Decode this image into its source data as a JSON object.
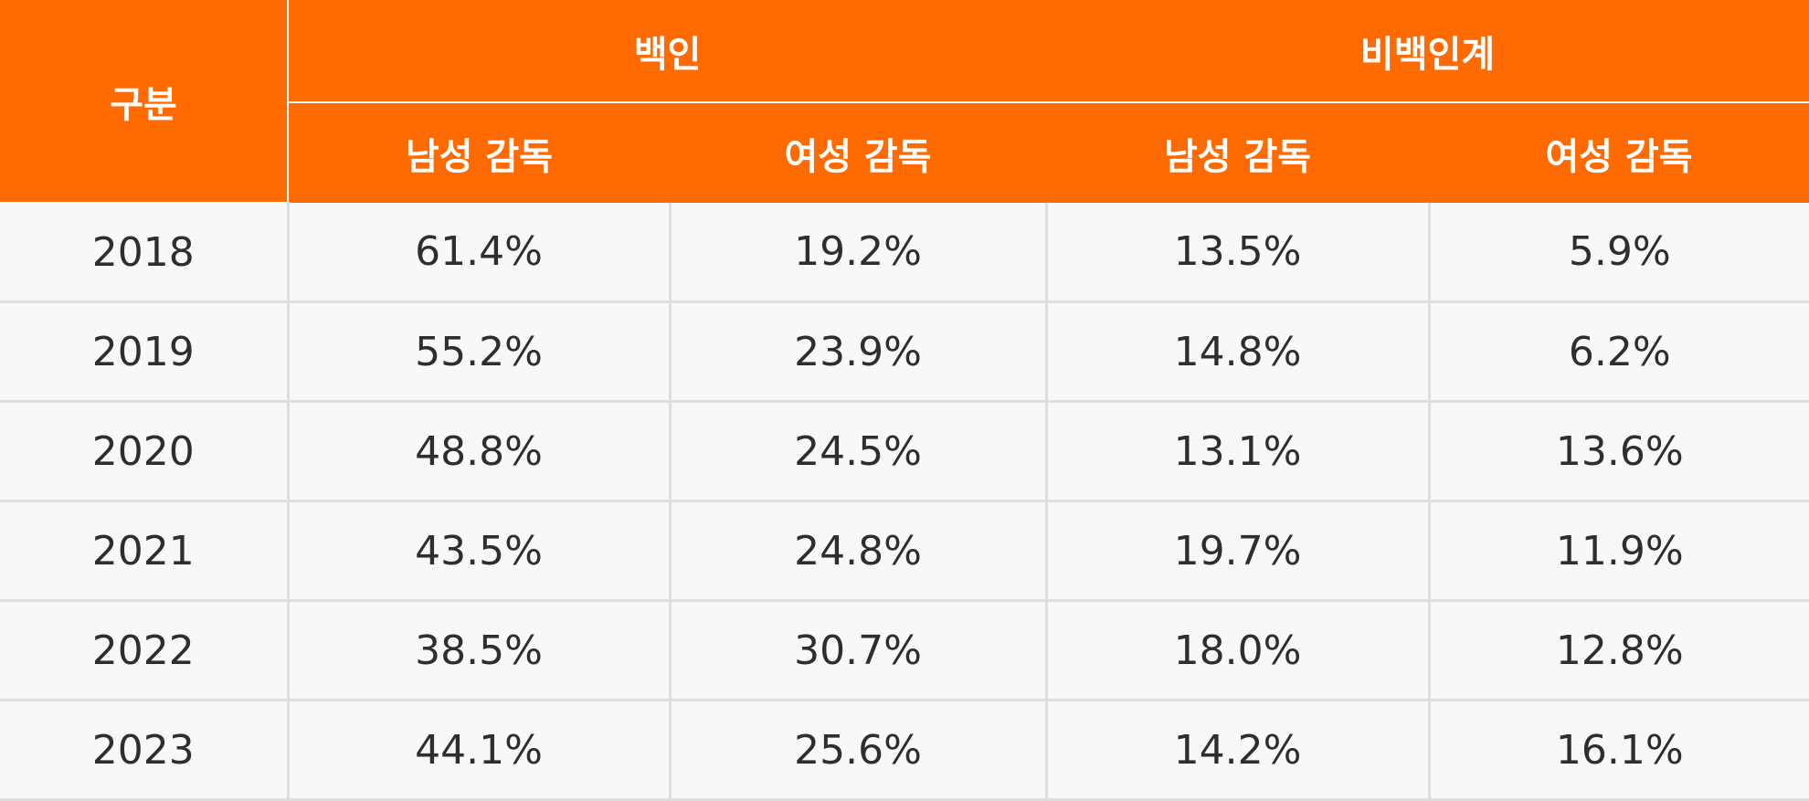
{
  "chart_data": {
    "type": "table",
    "corner_header": "구분",
    "group_headers": [
      "백인",
      "비백인계"
    ],
    "sub_headers": [
      "남성 감독",
      "여성 감독",
      "남성 감독",
      "여성 감독"
    ],
    "rows": [
      {
        "year": "2018",
        "cells": [
          "61.4%",
          "19.2%",
          "13.5%",
          "5.9%"
        ]
      },
      {
        "year": "2019",
        "cells": [
          "55.2%",
          "23.9%",
          "14.8%",
          "6.2%"
        ]
      },
      {
        "year": "2020",
        "cells": [
          "48.8%",
          "24.5%",
          "13.1%",
          "13.6%"
        ]
      },
      {
        "year": "2021",
        "cells": [
          "43.5%",
          "24.8%",
          "19.7%",
          "11.9%"
        ]
      },
      {
        "year": "2022",
        "cells": [
          "38.5%",
          "30.7%",
          "18.0%",
          "12.8%"
        ]
      },
      {
        "year": "2023",
        "cells": [
          "44.1%",
          "25.6%",
          "14.2%",
          "16.1%"
        ]
      }
    ],
    "series": [
      {
        "name": "백인 남성 감독",
        "values": [
          61.4,
          55.2,
          48.8,
          43.5,
          38.5,
          44.1
        ]
      },
      {
        "name": "백인 여성 감독",
        "values": [
          19.2,
          23.9,
          24.5,
          24.8,
          30.7,
          25.6
        ]
      },
      {
        "name": "비백인계 남성 감독",
        "values": [
          13.5,
          14.8,
          13.1,
          19.7,
          18.0,
          14.2
        ]
      },
      {
        "name": "비백인계 여성 감독",
        "values": [
          5.9,
          6.2,
          13.6,
          11.9,
          12.8,
          16.1
        ]
      }
    ]
  },
  "colors": {
    "header_bg": "#ff6b00",
    "header_text": "#ffffff",
    "cell_bg": "#f8f8f8",
    "cell_text": "#2e2e2e",
    "grid": "#dedede"
  }
}
